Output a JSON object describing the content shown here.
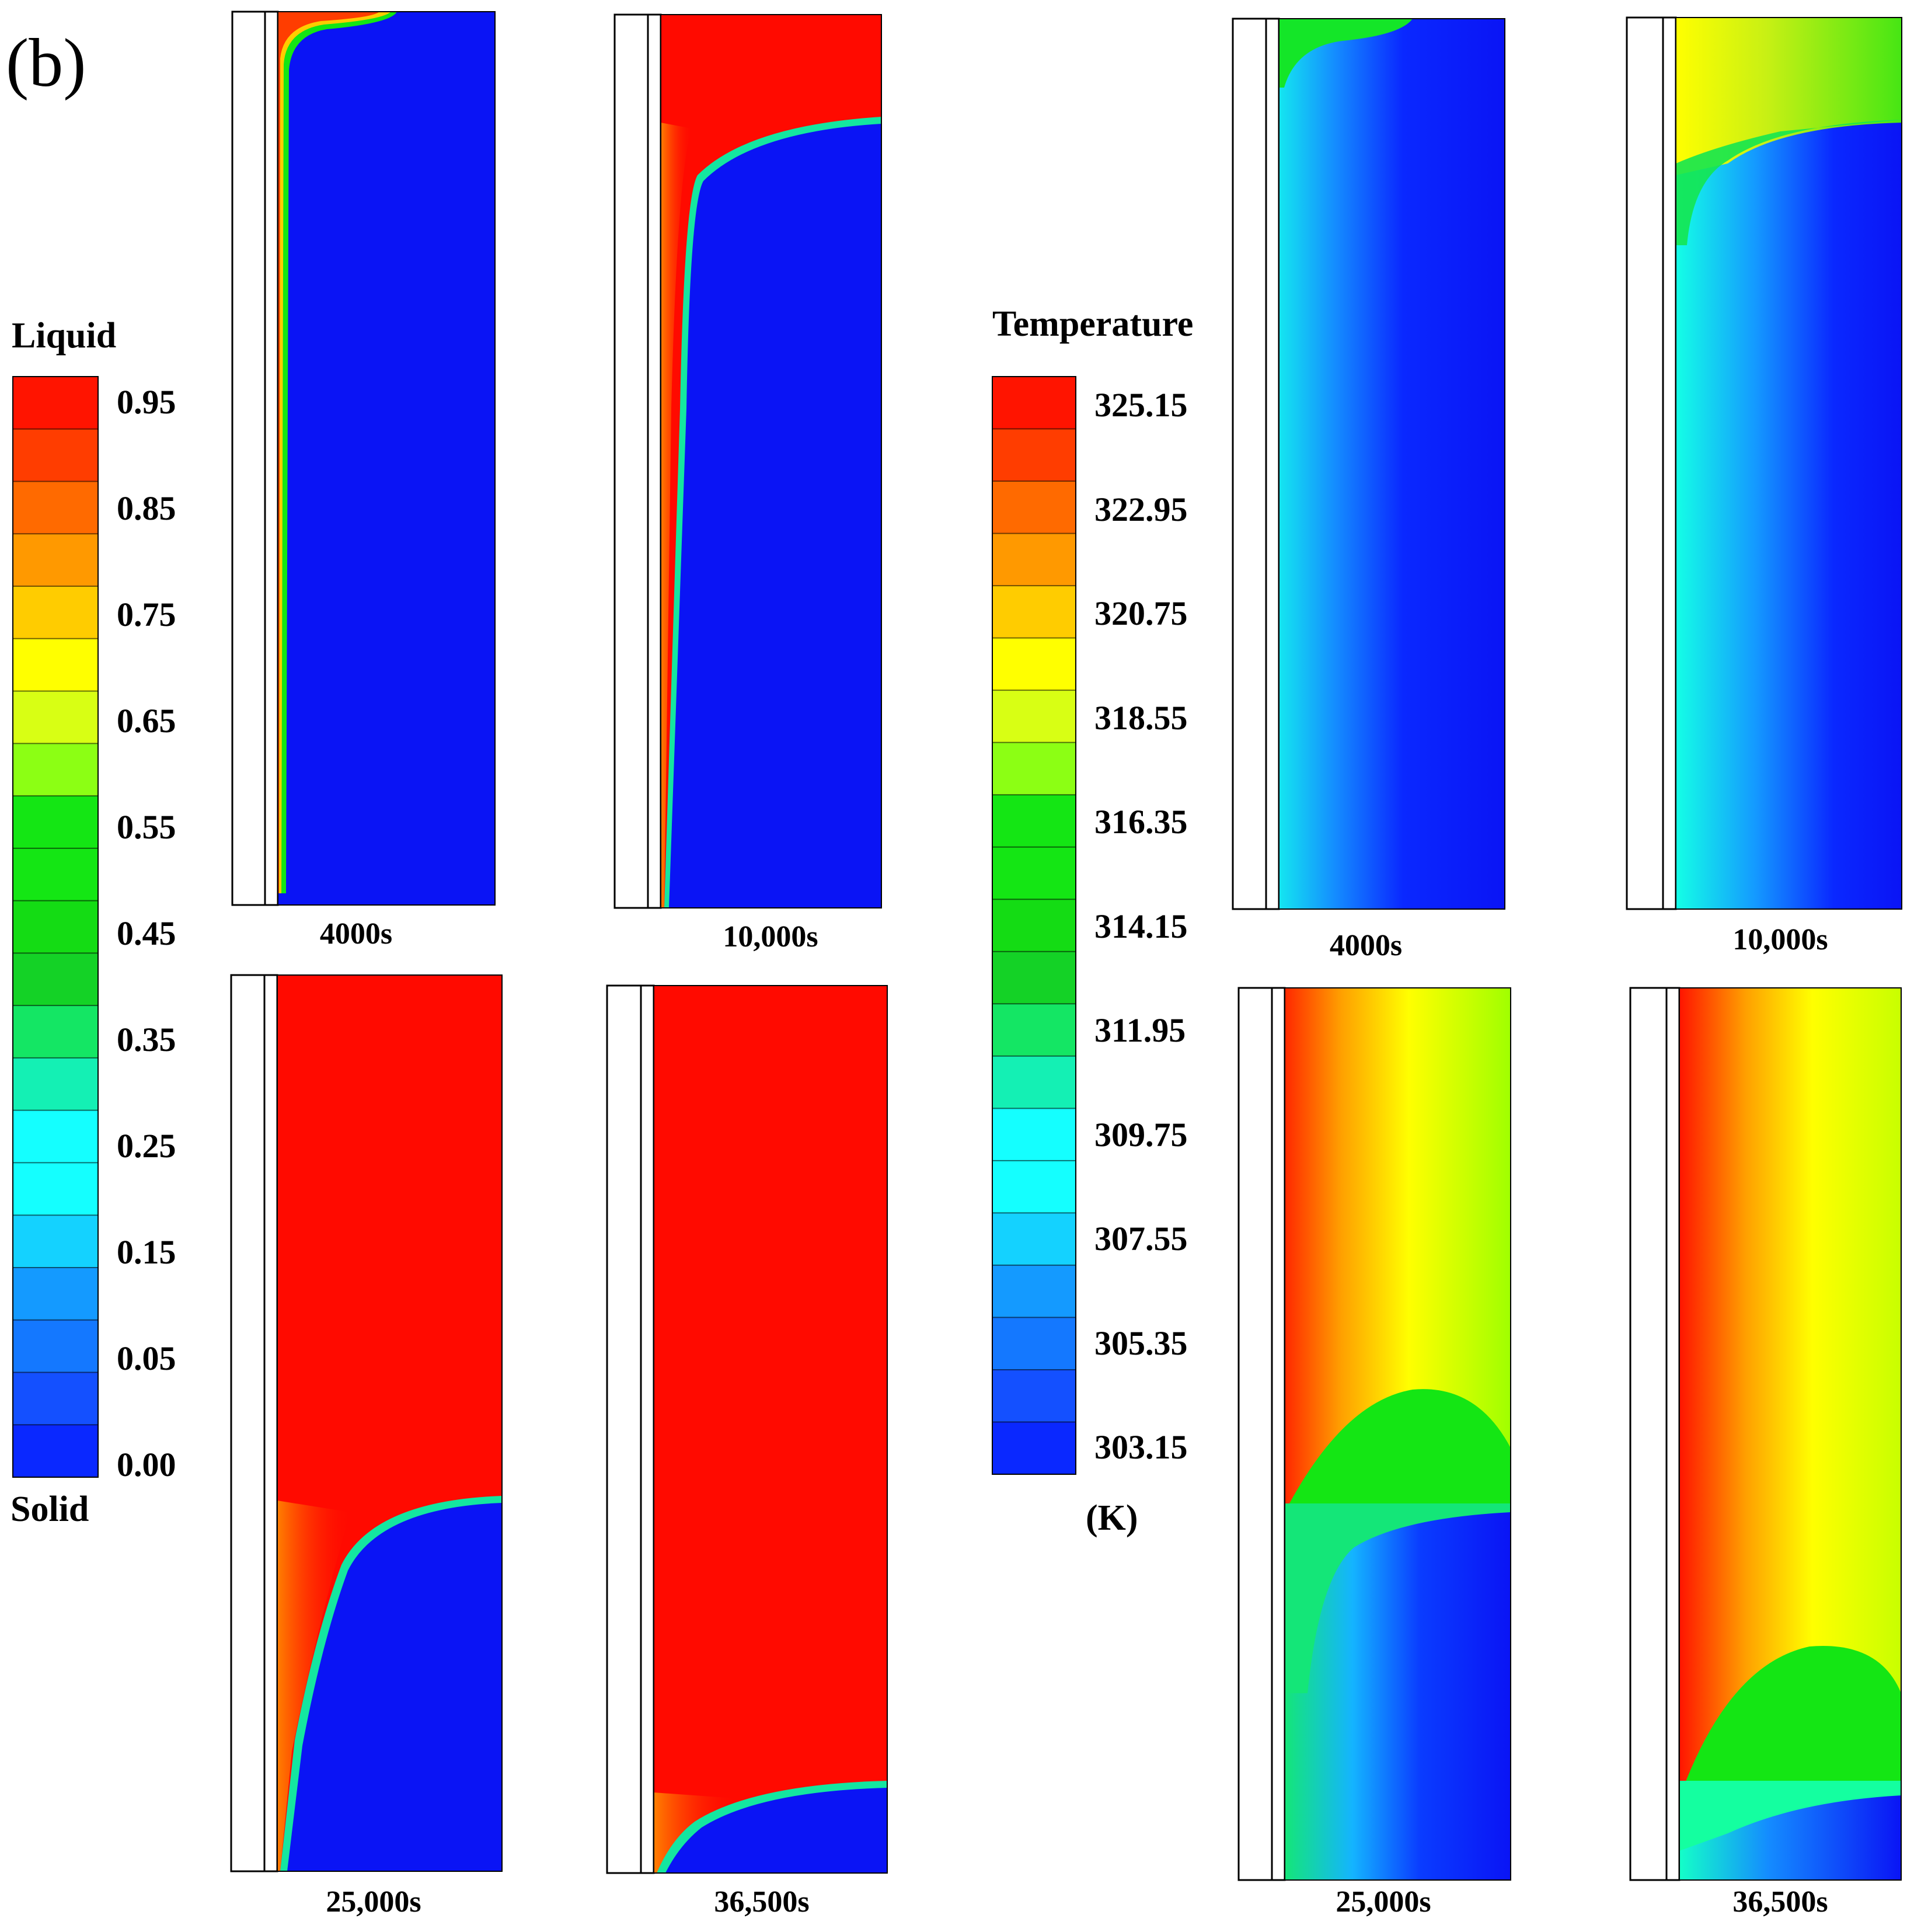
{
  "panel_label": "(b)",
  "liquid_legend": {
    "top_label": "Liquid",
    "bottom_label": "Solid",
    "ticks": [
      "0.95",
      "0.85",
      "0.75",
      "0.65",
      "0.55",
      "0.45",
      "0.35",
      "0.25",
      "0.15",
      "0.05",
      "0.00"
    ],
    "bands": [
      "#ff1400",
      "#ff3d00",
      "#ff6a00",
      "#ff9900",
      "#ffcc00",
      "#ffff00",
      "#d8ff14",
      "#8cff14",
      "#14e614",
      "#14e614",
      "#14dc14",
      "#14d226",
      "#14e664",
      "#14f0b4",
      "#14ffff",
      "#14ffff",
      "#14d2ff",
      "#149aff",
      "#1478ff",
      "#1450ff",
      "#0a28ff"
    ]
  },
  "temperature_legend": {
    "title": "Temperature",
    "unit": "(K)",
    "ticks": [
      "325.15",
      "322.95",
      "320.75",
      "318.55",
      "316.35",
      "314.15",
      "311.95",
      "309.75",
      "307.55",
      "305.35",
      "303.15"
    ],
    "bands": [
      "#ff1400",
      "#ff3d00",
      "#ff6a00",
      "#ff9900",
      "#ffcc00",
      "#ffff00",
      "#d8ff14",
      "#8cff14",
      "#14e614",
      "#14e614",
      "#14dc14",
      "#14d226",
      "#14e664",
      "#14f0b4",
      "#14ffff",
      "#14ffff",
      "#14d2ff",
      "#149aff",
      "#1478ff",
      "#1450ff",
      "#0a28ff"
    ]
  },
  "liquid_panels": [
    {
      "time": "4000s",
      "melt_front_fraction": 0.0
    },
    {
      "time": "10,000s",
      "melt_front_fraction": 0.13
    },
    {
      "time": "25,000s",
      "melt_front_fraction": 0.59
    },
    {
      "time": "36,500s",
      "melt_front_fraction": 0.9
    }
  ],
  "temperature_panels": [
    {
      "time": "4000s"
    },
    {
      "time": "10,000s"
    },
    {
      "time": "25,000s"
    },
    {
      "time": "36,500s"
    }
  ],
  "colors": {
    "liquid": "#ff0a00",
    "solid": "#0a14f5",
    "outline": "#000000"
  }
}
